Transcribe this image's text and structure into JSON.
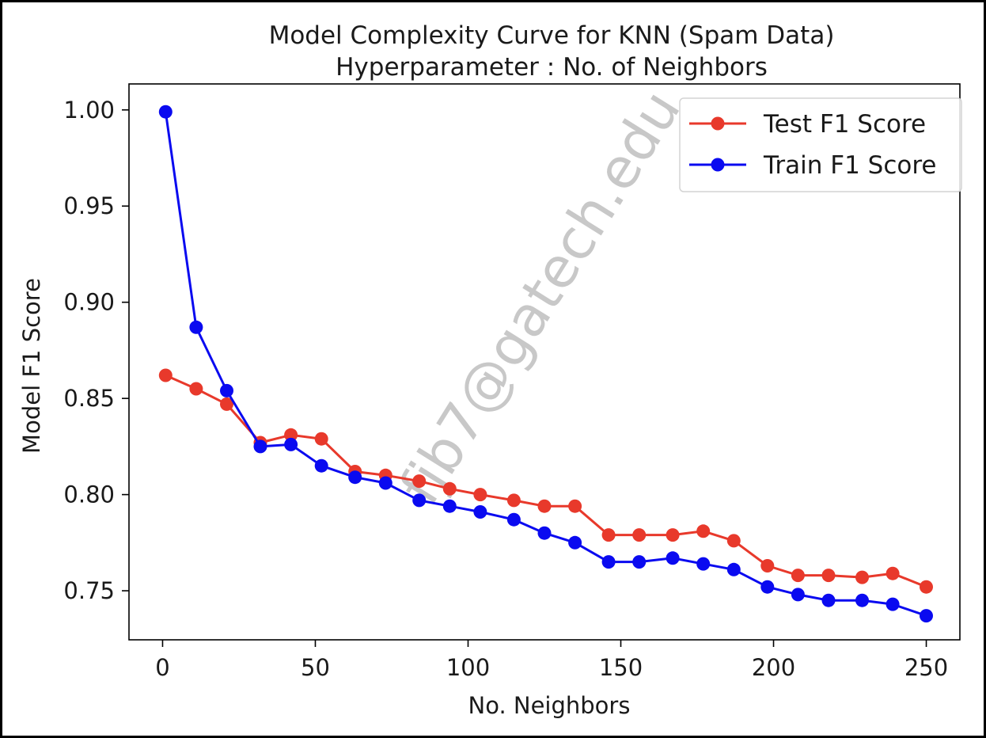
{
  "chart_data": {
    "type": "line",
    "title": "Model Complexity Curve for KNN (Spam Data)",
    "subtitle": "Hyperparameter : No. of Neighbors",
    "xlabel": "No. Neighbors",
    "ylabel": "Model F1 Score",
    "xlim": [
      -11,
      261
    ],
    "ylim": [
      0.7245,
      1.0135
    ],
    "xticks": [
      0,
      50,
      100,
      150,
      200,
      250
    ],
    "xtick_labels": [
      "0",
      "50",
      "100",
      "150",
      "200",
      "250"
    ],
    "yticks": [
      0.75,
      0.8,
      0.85,
      0.9,
      0.95,
      1.0
    ],
    "ytick_labels": [
      "0.75",
      "0.80",
      "0.85",
      "0.90",
      "0.95",
      "1.00"
    ],
    "grid": false,
    "legend_position": "top-right",
    "x": [
      1,
      11,
      21,
      32,
      42,
      52,
      63,
      73,
      84,
      94,
      104,
      115,
      125,
      135,
      146,
      156,
      167,
      177,
      187,
      198,
      208,
      218,
      229,
      239,
      250
    ],
    "series": [
      {
        "name": "Test F1 Score",
        "color": "#e8392b",
        "values": [
          0.862,
          0.855,
          0.847,
          0.827,
          0.831,
          0.829,
          0.812,
          0.81,
          0.807,
          0.803,
          0.8,
          0.797,
          0.794,
          0.794,
          0.779,
          0.779,
          0.779,
          0.781,
          0.776,
          0.763,
          0.758,
          0.758,
          0.757,
          0.759,
          0.752
        ]
      },
      {
        "name": "Train F1 Score",
        "color": "#0a0af0",
        "values": [
          0.999,
          0.887,
          0.854,
          0.825,
          0.826,
          0.815,
          0.809,
          0.806,
          0.797,
          0.794,
          0.791,
          0.787,
          0.78,
          0.775,
          0.765,
          0.765,
          0.767,
          0.764,
          0.761,
          0.752,
          0.748,
          0.745,
          0.745,
          0.743,
          0.737
        ]
      }
    ]
  },
  "watermark": "fjb7@gatech.edu"
}
